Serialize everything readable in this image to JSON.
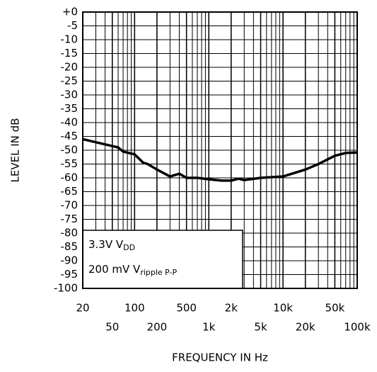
{
  "chart_data": {
    "type": "line",
    "x_label": "FREQUENCY IN Hz",
    "y_label": "LEVEL IN dB",
    "xscale": "log",
    "grid": true,
    "color": "#000000",
    "xlim": [
      20,
      100000
    ],
    "ylim": [
      -100,
      0
    ],
    "xticks": [
      20,
      50,
      100,
      200,
      500,
      {
        "value": 1000,
        "label": "1k"
      },
      {
        "value": 2000,
        "label": "2k"
      },
      {
        "value": 5000,
        "label": "5k"
      },
      {
        "value": 10000,
        "label": "10k"
      },
      {
        "value": 20000,
        "label": "20k"
      },
      {
        "value": 50000,
        "label": "50k"
      },
      {
        "value": 100000,
        "label": "100k"
      }
    ],
    "yticks": [
      {
        "value": 0,
        "label": "+0"
      },
      -5,
      -10,
      -15,
      -20,
      -25,
      -30,
      -35,
      -40,
      -45,
      -50,
      -55,
      -60,
      -65,
      -70,
      -75,
      -80,
      -85,
      -90,
      -95,
      -100
    ],
    "x": [
      20,
      60,
      70,
      100,
      130,
      150,
      200,
      300,
      400,
      500,
      700,
      1000,
      1500,
      2000,
      2500,
      3000,
      5000,
      10000,
      20000,
      30000,
      50000,
      70000,
      100000
    ],
    "values": [
      -46,
      -49,
      -50.5,
      -51.5,
      -54.5,
      -55,
      -57,
      -59.5,
      -58.5,
      -60,
      -60,
      -60.5,
      -61,
      -61,
      -60.3,
      -60.8,
      -60,
      -59.5,
      -57,
      -55,
      -52,
      -51,
      -50.8
    ],
    "annotations": [
      {
        "text": "3.3V V",
        "sub": "DD"
      },
      {
        "text": "200 mV V",
        "sub": "ripple P-P"
      }
    ]
  }
}
